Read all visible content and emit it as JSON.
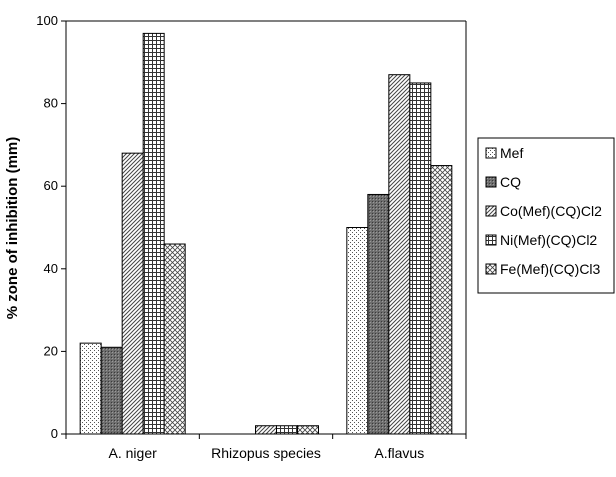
{
  "chart_data": {
    "type": "bar",
    "title": "",
    "xlabel": "",
    "ylabel": "% zone of inhibition (mm)",
    "ylim": [
      0,
      100
    ],
    "yticks": [
      "0",
      "20",
      "40",
      "60",
      "80",
      "100"
    ],
    "categories": [
      "A. niger",
      "Rhizopus species",
      "A.flavus"
    ],
    "grid": false,
    "legend_position": "right",
    "series": [
      {
        "name": "Mef",
        "values": [
          22,
          0,
          50
        ],
        "pattern": "dots",
        "color": "#ffffff"
      },
      {
        "name": "CQ",
        "values": [
          21,
          0,
          58
        ],
        "pattern": "dark",
        "color": "#808080"
      },
      {
        "name": "Co(Mef)(CQ)Cl2",
        "values": [
          68,
          2,
          87
        ],
        "pattern": "diagonal",
        "color": "#c0c0c0"
      },
      {
        "name": "Ni(Mef)(CQ)Cl2",
        "values": [
          97,
          2,
          85
        ],
        "pattern": "grid",
        "color": "#d0d0d0"
      },
      {
        "name": "Fe(Mef)(CQ)Cl3",
        "values": [
          46,
          2,
          65
        ],
        "pattern": "crosshatch",
        "color": "#e0e0e0"
      }
    ]
  }
}
